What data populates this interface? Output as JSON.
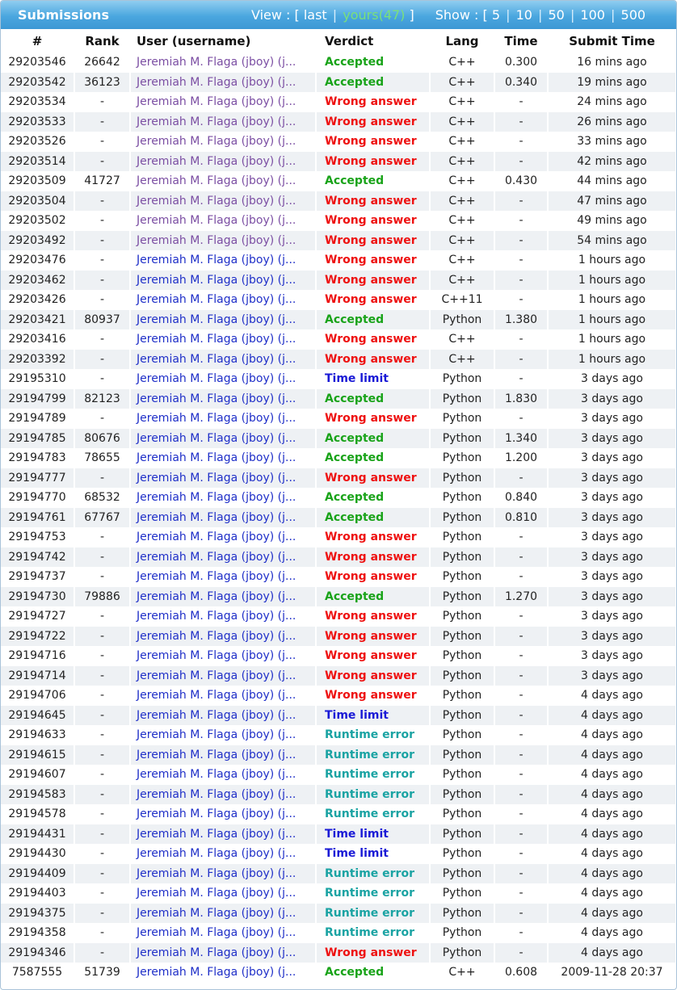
{
  "header": {
    "title": "Submissions",
    "view_label": "View :",
    "view_last": "last",
    "view_yours": "yours(47)",
    "show_label": "Show :",
    "show_options": [
      "5",
      "10",
      "50",
      "100",
      "500"
    ]
  },
  "columns": [
    "#",
    "Rank",
    "User (username)",
    "Verdict",
    "Lang",
    "Time",
    "Submit Time"
  ],
  "colors": {
    "accepted": "#19a319",
    "wrong_answer": "#ee1111",
    "time_limit": "#1a1ad6",
    "runtime_error": "#1aa3a3",
    "header_bar": "#4aa6df"
  },
  "rows": [
    {
      "id": "29203546",
      "rank": "26642",
      "user": "Jeremiah M. Flaga (jboy) (j...",
      "user_style": "purple",
      "verdict": "Accepted",
      "lang": "C++",
      "time": "0.300",
      "submit": "16 mins ago"
    },
    {
      "id": "29203542",
      "rank": "36123",
      "user": "Jeremiah M. Flaga (jboy) (j...",
      "user_style": "purple",
      "verdict": "Accepted",
      "lang": "C++",
      "time": "0.340",
      "submit": "19 mins ago"
    },
    {
      "id": "29203534",
      "rank": "-",
      "user": "Jeremiah M. Flaga (jboy) (j...",
      "user_style": "purple",
      "verdict": "Wrong answer",
      "lang": "C++",
      "time": "-",
      "submit": "24 mins ago"
    },
    {
      "id": "29203533",
      "rank": "-",
      "user": "Jeremiah M. Flaga (jboy) (j...",
      "user_style": "purple",
      "verdict": "Wrong answer",
      "lang": "C++",
      "time": "-",
      "submit": "26 mins ago"
    },
    {
      "id": "29203526",
      "rank": "-",
      "user": "Jeremiah M. Flaga (jboy) (j...",
      "user_style": "purple",
      "verdict": "Wrong answer",
      "lang": "C++",
      "time": "-",
      "submit": "33 mins ago"
    },
    {
      "id": "29203514",
      "rank": "-",
      "user": "Jeremiah M. Flaga (jboy) (j...",
      "user_style": "purple",
      "verdict": "Wrong answer",
      "lang": "C++",
      "time": "-",
      "submit": "42 mins ago"
    },
    {
      "id": "29203509",
      "rank": "41727",
      "user": "Jeremiah M. Flaga (jboy) (j...",
      "user_style": "purple",
      "verdict": "Accepted",
      "lang": "C++",
      "time": "0.430",
      "submit": "44 mins ago"
    },
    {
      "id": "29203504",
      "rank": "-",
      "user": "Jeremiah M. Flaga (jboy) (j...",
      "user_style": "purple",
      "verdict": "Wrong answer",
      "lang": "C++",
      "time": "-",
      "submit": "47 mins ago"
    },
    {
      "id": "29203502",
      "rank": "-",
      "user": "Jeremiah M. Flaga (jboy) (j...",
      "user_style": "purple",
      "verdict": "Wrong answer",
      "lang": "C++",
      "time": "-",
      "submit": "49 mins ago"
    },
    {
      "id": "29203492",
      "rank": "-",
      "user": "Jeremiah M. Flaga (jboy) (j...",
      "user_style": "purple",
      "verdict": "Wrong answer",
      "lang": "C++",
      "time": "-",
      "submit": "54 mins ago"
    },
    {
      "id": "29203476",
      "rank": "-",
      "user": "Jeremiah M. Flaga (jboy) (j...",
      "user_style": "blue",
      "verdict": "Wrong answer",
      "lang": "C++",
      "time": "-",
      "submit": "1 hours ago"
    },
    {
      "id": "29203462",
      "rank": "-",
      "user": "Jeremiah M. Flaga (jboy) (j...",
      "user_style": "blue",
      "verdict": "Wrong answer",
      "lang": "C++",
      "time": "-",
      "submit": "1 hours ago"
    },
    {
      "id": "29203426",
      "rank": "-",
      "user": "Jeremiah M. Flaga (jboy) (j...",
      "user_style": "blue",
      "verdict": "Wrong answer",
      "lang": "C++11",
      "time": "-",
      "submit": "1 hours ago"
    },
    {
      "id": "29203421",
      "rank": "80937",
      "user": "Jeremiah M. Flaga (jboy) (j...",
      "user_style": "blue",
      "verdict": "Accepted",
      "lang": "Python",
      "time": "1.380",
      "submit": "1 hours ago"
    },
    {
      "id": "29203416",
      "rank": "-",
      "user": "Jeremiah M. Flaga (jboy) (j...",
      "user_style": "blue",
      "verdict": "Wrong answer",
      "lang": "C++",
      "time": "-",
      "submit": "1 hours ago"
    },
    {
      "id": "29203392",
      "rank": "-",
      "user": "Jeremiah M. Flaga (jboy) (j...",
      "user_style": "blue",
      "verdict": "Wrong answer",
      "lang": "C++",
      "time": "-",
      "submit": "1 hours ago"
    },
    {
      "id": "29195310",
      "rank": "-",
      "user": "Jeremiah M. Flaga (jboy) (j...",
      "user_style": "blue",
      "verdict": "Time limit",
      "lang": "Python",
      "time": "-",
      "submit": "3 days ago"
    },
    {
      "id": "29194799",
      "rank": "82123",
      "user": "Jeremiah M. Flaga (jboy) (j...",
      "user_style": "blue",
      "verdict": "Accepted",
      "lang": "Python",
      "time": "1.830",
      "submit": "3 days ago"
    },
    {
      "id": "29194789",
      "rank": "-",
      "user": "Jeremiah M. Flaga (jboy) (j...",
      "user_style": "blue",
      "verdict": "Wrong answer",
      "lang": "Python",
      "time": "-",
      "submit": "3 days ago"
    },
    {
      "id": "29194785",
      "rank": "80676",
      "user": "Jeremiah M. Flaga (jboy) (j...",
      "user_style": "blue",
      "verdict": "Accepted",
      "lang": "Python",
      "time": "1.340",
      "submit": "3 days ago"
    },
    {
      "id": "29194783",
      "rank": "78655",
      "user": "Jeremiah M. Flaga (jboy) (j...",
      "user_style": "blue",
      "verdict": "Accepted",
      "lang": "Python",
      "time": "1.200",
      "submit": "3 days ago"
    },
    {
      "id": "29194777",
      "rank": "-",
      "user": "Jeremiah M. Flaga (jboy) (j...",
      "user_style": "blue",
      "verdict": "Wrong answer",
      "lang": "Python",
      "time": "-",
      "submit": "3 days ago"
    },
    {
      "id": "29194770",
      "rank": "68532",
      "user": "Jeremiah M. Flaga (jboy) (j...",
      "user_style": "blue",
      "verdict": "Accepted",
      "lang": "Python",
      "time": "0.840",
      "submit": "3 days ago"
    },
    {
      "id": "29194761",
      "rank": "67767",
      "user": "Jeremiah M. Flaga (jboy) (j...",
      "user_style": "blue",
      "verdict": "Accepted",
      "lang": "Python",
      "time": "0.810",
      "submit": "3 days ago"
    },
    {
      "id": "29194753",
      "rank": "-",
      "user": "Jeremiah M. Flaga (jboy) (j...",
      "user_style": "blue",
      "verdict": "Wrong answer",
      "lang": "Python",
      "time": "-",
      "submit": "3 days ago"
    },
    {
      "id": "29194742",
      "rank": "-",
      "user": "Jeremiah M. Flaga (jboy) (j...",
      "user_style": "blue",
      "verdict": "Wrong answer",
      "lang": "Python",
      "time": "-",
      "submit": "3 days ago"
    },
    {
      "id": "29194737",
      "rank": "-",
      "user": "Jeremiah M. Flaga (jboy) (j...",
      "user_style": "blue",
      "verdict": "Wrong answer",
      "lang": "Python",
      "time": "-",
      "submit": "3 days ago"
    },
    {
      "id": "29194730",
      "rank": "79886",
      "user": "Jeremiah M. Flaga (jboy) (j...",
      "user_style": "blue",
      "verdict": "Accepted",
      "lang": "Python",
      "time": "1.270",
      "submit": "3 days ago"
    },
    {
      "id": "29194727",
      "rank": "-",
      "user": "Jeremiah M. Flaga (jboy) (j...",
      "user_style": "blue",
      "verdict": "Wrong answer",
      "lang": "Python",
      "time": "-",
      "submit": "3 days ago"
    },
    {
      "id": "29194722",
      "rank": "-",
      "user": "Jeremiah M. Flaga (jboy) (j...",
      "user_style": "blue",
      "verdict": "Wrong answer",
      "lang": "Python",
      "time": "-",
      "submit": "3 days ago"
    },
    {
      "id": "29194716",
      "rank": "-",
      "user": "Jeremiah M. Flaga (jboy) (j...",
      "user_style": "blue",
      "verdict": "Wrong answer",
      "lang": "Python",
      "time": "-",
      "submit": "3 days ago"
    },
    {
      "id": "29194714",
      "rank": "-",
      "user": "Jeremiah M. Flaga (jboy) (j...",
      "user_style": "blue",
      "verdict": "Wrong answer",
      "lang": "Python",
      "time": "-",
      "submit": "3 days ago"
    },
    {
      "id": "29194706",
      "rank": "-",
      "user": "Jeremiah M. Flaga (jboy) (j...",
      "user_style": "blue",
      "verdict": "Wrong answer",
      "lang": "Python",
      "time": "-",
      "submit": "4 days ago"
    },
    {
      "id": "29194645",
      "rank": "-",
      "user": "Jeremiah M. Flaga (jboy) (j...",
      "user_style": "blue",
      "verdict": "Time limit",
      "lang": "Python",
      "time": "-",
      "submit": "4 days ago"
    },
    {
      "id": "29194633",
      "rank": "-",
      "user": "Jeremiah M. Flaga (jboy) (j...",
      "user_style": "blue",
      "verdict": "Runtime error",
      "lang": "Python",
      "time": "-",
      "submit": "4 days ago"
    },
    {
      "id": "29194615",
      "rank": "-",
      "user": "Jeremiah M. Flaga (jboy) (j...",
      "user_style": "blue",
      "verdict": "Runtime error",
      "lang": "Python",
      "time": "-",
      "submit": "4 days ago"
    },
    {
      "id": "29194607",
      "rank": "-",
      "user": "Jeremiah M. Flaga (jboy) (j...",
      "user_style": "blue",
      "verdict": "Runtime error",
      "lang": "Python",
      "time": "-",
      "submit": "4 days ago"
    },
    {
      "id": "29194583",
      "rank": "-",
      "user": "Jeremiah M. Flaga (jboy) (j...",
      "user_style": "blue",
      "verdict": "Runtime error",
      "lang": "Python",
      "time": "-",
      "submit": "4 days ago"
    },
    {
      "id": "29194578",
      "rank": "-",
      "user": "Jeremiah M. Flaga (jboy) (j...",
      "user_style": "blue",
      "verdict": "Runtime error",
      "lang": "Python",
      "time": "-",
      "submit": "4 days ago"
    },
    {
      "id": "29194431",
      "rank": "-",
      "user": "Jeremiah M. Flaga (jboy) (j...",
      "user_style": "blue",
      "verdict": "Time limit",
      "lang": "Python",
      "time": "-",
      "submit": "4 days ago"
    },
    {
      "id": "29194430",
      "rank": "-",
      "user": "Jeremiah M. Flaga (jboy) (j...",
      "user_style": "blue",
      "verdict": "Time limit",
      "lang": "Python",
      "time": "-",
      "submit": "4 days ago"
    },
    {
      "id": "29194409",
      "rank": "-",
      "user": "Jeremiah M. Flaga (jboy) (j...",
      "user_style": "blue",
      "verdict": "Runtime error",
      "lang": "Python",
      "time": "-",
      "submit": "4 days ago"
    },
    {
      "id": "29194403",
      "rank": "-",
      "user": "Jeremiah M. Flaga (jboy) (j...",
      "user_style": "blue",
      "verdict": "Runtime error",
      "lang": "Python",
      "time": "-",
      "submit": "4 days ago"
    },
    {
      "id": "29194375",
      "rank": "-",
      "user": "Jeremiah M. Flaga (jboy) (j...",
      "user_style": "blue",
      "verdict": "Runtime error",
      "lang": "Python",
      "time": "-",
      "submit": "4 days ago"
    },
    {
      "id": "29194358",
      "rank": "-",
      "user": "Jeremiah M. Flaga (jboy) (j...",
      "user_style": "blue",
      "verdict": "Runtime error",
      "lang": "Python",
      "time": "-",
      "submit": "4 days ago"
    },
    {
      "id": "29194346",
      "rank": "-",
      "user": "Jeremiah M. Flaga (jboy) (j...",
      "user_style": "blue",
      "verdict": "Wrong answer",
      "lang": "Python",
      "time": "-",
      "submit": "4 days ago"
    },
    {
      "id": "7587555",
      "rank": "51739",
      "user": "Jeremiah M. Flaga (jboy) (j...",
      "user_style": "blue",
      "verdict": "Accepted",
      "lang": "C++",
      "time": "0.608",
      "submit": "2009-11-28 20:37"
    }
  ]
}
